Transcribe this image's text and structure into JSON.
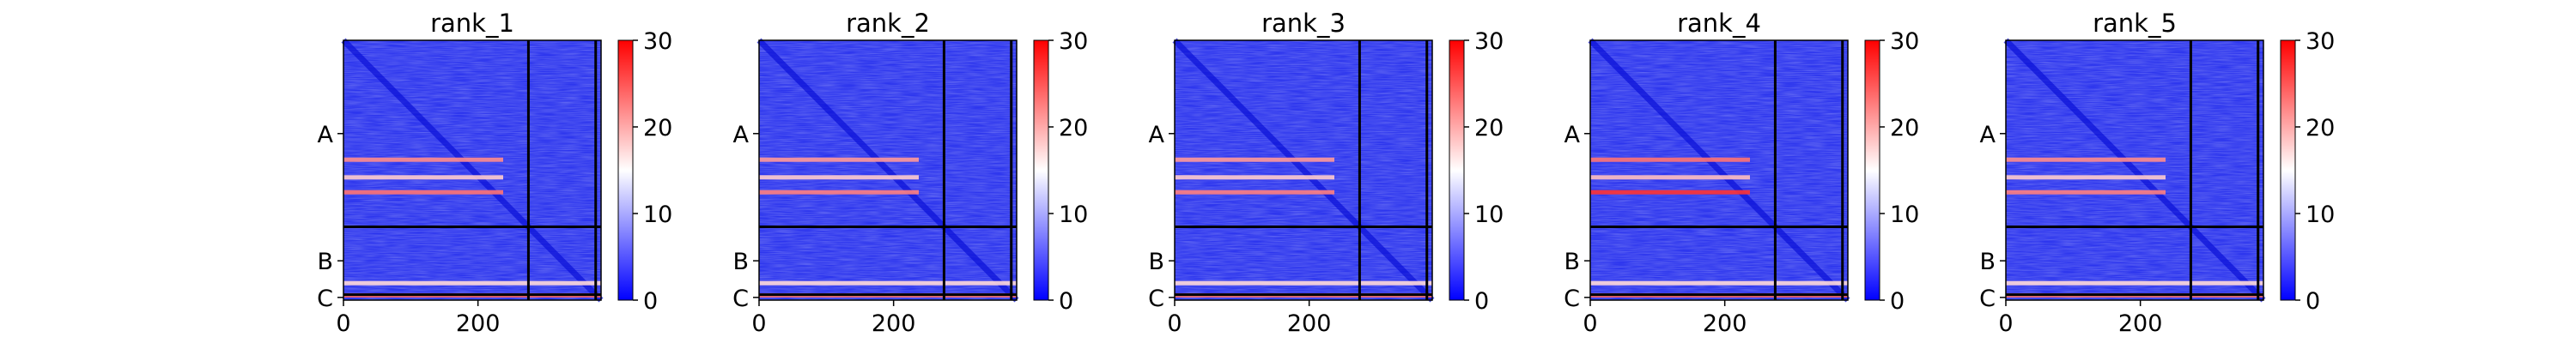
{
  "chart_data": [
    {
      "type": "heatmap",
      "title": "rank_1",
      "xlabel": "",
      "ylabel": "",
      "x_ticks": [
        0,
        200
      ],
      "y_tick_labels": [
        "A",
        "B",
        "C"
      ],
      "chain_boundaries": [
        275,
        375
      ],
      "matrix_size": 383,
      "colorbar": {
        "ticks": [
          0,
          10,
          20,
          30
        ],
        "range": [
          0,
          30
        ],
        "cmap": "bwr"
      },
      "hot_rows": [
        {
          "y": 176,
          "level": 0.45
        },
        {
          "y": 202,
          "level": 0.2
        },
        {
          "y": 224,
          "level": 0.55
        },
        {
          "y": 358,
          "level": 0.15
        },
        {
          "y": 376,
          "level": 0.6
        }
      ]
    },
    {
      "type": "heatmap",
      "title": "rank_2",
      "xlabel": "",
      "ylabel": "",
      "x_ticks": [
        0,
        200
      ],
      "y_tick_labels": [
        "A",
        "B",
        "C"
      ],
      "chain_boundaries": [
        275,
        375
      ],
      "matrix_size": 383,
      "colorbar": {
        "ticks": [
          0,
          10,
          20,
          30
        ],
        "range": [
          0,
          30
        ],
        "cmap": "bwr"
      },
      "hot_rows": [
        {
          "y": 176,
          "level": 0.4
        },
        {
          "y": 202,
          "level": 0.2
        },
        {
          "y": 224,
          "level": 0.5
        },
        {
          "y": 358,
          "level": 0.15
        },
        {
          "y": 376,
          "level": 0.55
        }
      ]
    },
    {
      "type": "heatmap",
      "title": "rank_3",
      "xlabel": "",
      "ylabel": "",
      "x_ticks": [
        0,
        200
      ],
      "y_tick_labels": [
        "A",
        "B",
        "C"
      ],
      "chain_boundaries": [
        275,
        375
      ],
      "matrix_size": 383,
      "colorbar": {
        "ticks": [
          0,
          10,
          20,
          30
        ],
        "range": [
          0,
          30
        ],
        "cmap": "bwr"
      },
      "hot_rows": [
        {
          "y": 176,
          "level": 0.4
        },
        {
          "y": 202,
          "level": 0.2
        },
        {
          "y": 224,
          "level": 0.5
        },
        {
          "y": 358,
          "level": 0.15
        },
        {
          "y": 376,
          "level": 0.55
        }
      ]
    },
    {
      "type": "heatmap",
      "title": "rank_4",
      "xlabel": "",
      "ylabel": "",
      "x_ticks": [
        0,
        200
      ],
      "y_tick_labels": [
        "A",
        "B",
        "C"
      ],
      "chain_boundaries": [
        275,
        375
      ],
      "matrix_size": 383,
      "colorbar": {
        "ticks": [
          0,
          10,
          20,
          30
        ],
        "range": [
          0,
          30
        ],
        "cmap": "bwr"
      },
      "hot_rows": [
        {
          "y": 176,
          "level": 0.55
        },
        {
          "y": 202,
          "level": 0.25
        },
        {
          "y": 224,
          "level": 0.8
        },
        {
          "y": 358,
          "level": 0.15
        },
        {
          "y": 376,
          "level": 0.6
        }
      ]
    },
    {
      "type": "heatmap",
      "title": "rank_5",
      "xlabel": "",
      "ylabel": "",
      "x_ticks": [
        0,
        200
      ],
      "y_tick_labels": [
        "A",
        "B",
        "C"
      ],
      "chain_boundaries": [
        275,
        375
      ],
      "matrix_size": 383,
      "colorbar": {
        "ticks": [
          0,
          10,
          20,
          30
        ],
        "range": [
          0,
          30
        ],
        "cmap": "bwr"
      },
      "hot_rows": [
        {
          "y": 176,
          "level": 0.45
        },
        {
          "y": 202,
          "level": 0.2
        },
        {
          "y": 224,
          "level": 0.5
        },
        {
          "y": 358,
          "level": 0.15
        },
        {
          "y": 376,
          "level": 0.55
        }
      ]
    }
  ]
}
